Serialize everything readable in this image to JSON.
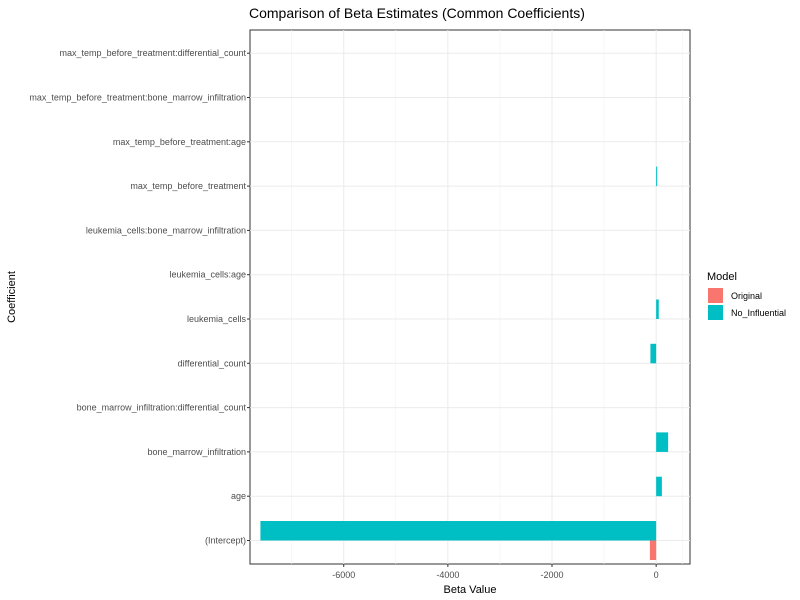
{
  "chart_data": {
    "type": "bar",
    "orientation": "horizontal",
    "title": "Comparison of Beta Estimates (Common Coefficients)",
    "xlabel": "Beta Value",
    "ylabel": "Coefficient",
    "xlim": [
      -7800,
      650
    ],
    "x_ticks": [
      -6000,
      -4000,
      -2000,
      0
    ],
    "x_tick_labels": [
      "-6000",
      "-4000",
      "-2000",
      "0"
    ],
    "grid": true,
    "categories": [
      "(Intercept)",
      "age",
      "bone_marrow_infiltration",
      "bone_marrow_infiltration:differential_count",
      "differential_count",
      "leukemia_cells",
      "leukemia_cells:age",
      "leukemia_cells:bone_marrow_infiltration",
      "max_temp_before_treatment",
      "max_temp_before_treatment:age",
      "max_temp_before_treatment:bone_marrow_infiltration",
      "max_temp_before_treatment:differential_count"
    ],
    "series": [
      {
        "name": "Original",
        "color": "#F8766D",
        "values": [
          -120,
          0,
          0,
          0,
          0,
          0,
          0,
          0,
          0,
          0,
          0,
          0
        ]
      },
      {
        "name": "No_Influential",
        "color": "#00BFC4",
        "values": [
          -7600,
          110,
          230,
          0,
          -110,
          50,
          0,
          0,
          20,
          0,
          0,
          0
        ]
      }
    ],
    "legend": {
      "title": "Model",
      "position": "right"
    }
  }
}
